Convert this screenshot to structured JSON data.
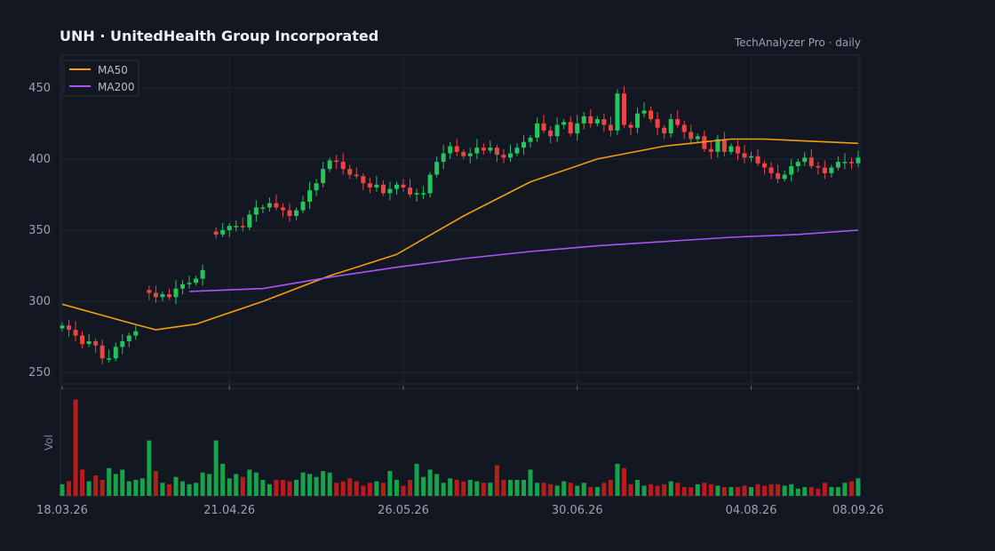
{
  "header": {
    "title": "UNH  ·  UnitedHealth Group Incorporated",
    "source": "TechAnalyzer Pro · daily"
  },
  "colors": {
    "background": "#131722",
    "up": "#22c55e",
    "down": "#ef4444",
    "volume_up": "#16a34a",
    "volume_down": "#b91c1c",
    "ma50": "#f59e0b",
    "ma200": "#a855f7",
    "grid": "#1f2433"
  },
  "chart_data": {
    "type": "candlestick",
    "ticker": "UNH",
    "interval": "daily",
    "x_tick_labels": [
      "18.03.26",
      "21.04.26",
      "26.05.26",
      "30.06.26",
      "04.08.26",
      "08.09.26"
    ],
    "price_axis": {
      "ticks": [
        250,
        300,
        350,
        400,
        450
      ],
      "ylim": [
        242,
        473
      ]
    },
    "volume_axis": {
      "label": "Vol"
    },
    "legend": {
      "position": "top-left",
      "entries": [
        "MA50",
        "MA200"
      ]
    },
    "grid": true,
    "close": [
      283,
      280,
      276,
      270,
      272,
      269,
      260,
      260,
      268,
      272,
      276,
      279,
      null,
      306,
      303,
      305,
      303,
      309,
      312,
      313,
      316,
      322,
      null,
      347,
      350,
      353,
      353,
      352,
      361,
      366,
      366,
      369,
      366,
      364,
      360,
      364,
      370,
      378,
      383,
      393,
      399,
      398,
      393,
      389,
      388,
      383,
      380,
      382,
      376,
      379,
      382,
      380,
      375,
      376,
      376,
      389,
      398,
      404,
      409,
      405,
      402,
      404,
      408,
      406,
      408,
      403,
      401,
      404,
      408,
      412,
      415,
      425,
      420,
      416,
      424,
      426,
      418,
      425,
      430,
      425,
      428,
      424,
      420,
      446,
      424,
      422,
      432,
      434,
      428,
      422,
      418,
      428,
      424,
      419,
      414,
      416,
      407,
      405,
      414,
      405,
      409,
      404,
      401,
      402,
      397,
      394,
      390,
      386,
      389,
      395,
      398,
      401,
      395,
      394,
      390,
      394,
      398,
      398,
      397,
      401
    ],
    "volume": [
      8,
      10,
      66,
      18,
      10,
      14,
      11,
      19,
      15,
      18,
      10,
      11,
      12,
      38,
      17,
      9,
      8,
      13,
      10,
      8,
      9,
      16,
      15,
      38,
      22,
      12,
      15,
      13,
      18,
      16,
      11,
      8,
      11,
      11,
      10,
      11,
      16,
      15,
      13,
      17,
      16,
      9,
      10,
      12,
      10,
      7,
      9,
      10,
      9,
      17,
      11,
      7,
      11,
      22,
      13,
      18,
      15,
      9,
      12,
      11,
      10,
      11,
      10,
      9,
      9,
      21,
      11,
      11,
      11,
      11,
      18,
      9,
      9,
      8,
      7,
      10,
      9,
      7,
      9,
      6,
      6,
      9,
      11,
      22,
      19,
      8,
      11,
      7,
      8,
      7,
      8,
      10,
      9,
      6,
      6,
      8,
      9,
      8,
      7,
      6,
      6,
      6,
      7,
      6,
      8,
      7,
      8,
      8,
      7,
      8,
      5,
      6,
      6,
      5,
      9,
      6,
      6,
      9,
      10,
      12
    ],
    "ma50": [
      {
        "x": 0,
        "y": 298
      },
      {
        "x": 10,
        "y": 285
      },
      {
        "x": 14,
        "y": 280
      },
      {
        "x": 20,
        "y": 284
      },
      {
        "x": 30,
        "y": 300
      },
      {
        "x": 40,
        "y": 318
      },
      {
        "x": 50,
        "y": 333
      },
      {
        "x": 60,
        "y": 360
      },
      {
        "x": 70,
        "y": 384
      },
      {
        "x": 80,
        "y": 400
      },
      {
        "x": 90,
        "y": 409
      },
      {
        "x": 100,
        "y": 414
      },
      {
        "x": 105,
        "y": 414
      },
      {
        "x": 119,
        "y": 411
      }
    ],
    "ma200": [
      {
        "x": 19,
        "y": 307
      },
      {
        "x": 30,
        "y": 309
      },
      {
        "x": 40,
        "y": 317
      },
      {
        "x": 50,
        "y": 324
      },
      {
        "x": 60,
        "y": 330
      },
      {
        "x": 70,
        "y": 335
      },
      {
        "x": 80,
        "y": 339
      },
      {
        "x": 90,
        "y": 342
      },
      {
        "x": 100,
        "y": 345
      },
      {
        "x": 110,
        "y": 347
      },
      {
        "x": 119,
        "y": 350
      }
    ]
  }
}
